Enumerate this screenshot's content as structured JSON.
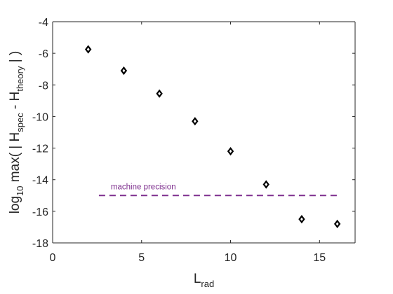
{
  "chart_data": {
    "type": "scatter",
    "x": [
      2,
      4,
      6,
      8,
      10,
      12,
      14,
      16
    ],
    "y": [
      -5.75,
      -7.1,
      -8.55,
      -10.3,
      -12.2,
      -14.3,
      -16.5,
      -16.8
    ],
    "xlim": [
      0,
      17
    ],
    "ylim": [
      -18,
      -4
    ],
    "xticks": [
      0,
      5,
      10,
      15
    ],
    "yticks": [
      -4,
      -6,
      -8,
      -10,
      -12,
      -14,
      -16,
      -18
    ],
    "xlabel": {
      "main": "L",
      "sub": "rad"
    },
    "ylabel": {
      "prefix": "log",
      "prefix_sub": "10",
      "part1": " max( | H",
      "sub1": "spec",
      "part2": " - H",
      "sub2": "theory",
      "part3": " | )"
    },
    "grid": false,
    "marker": "diamond",
    "marker_color": "#000000",
    "reference_line": {
      "y": -15,
      "x_range": [
        2.6,
        16.2
      ],
      "label": "machine precision",
      "color": "#7e2f8e",
      "style": "dashed"
    }
  }
}
